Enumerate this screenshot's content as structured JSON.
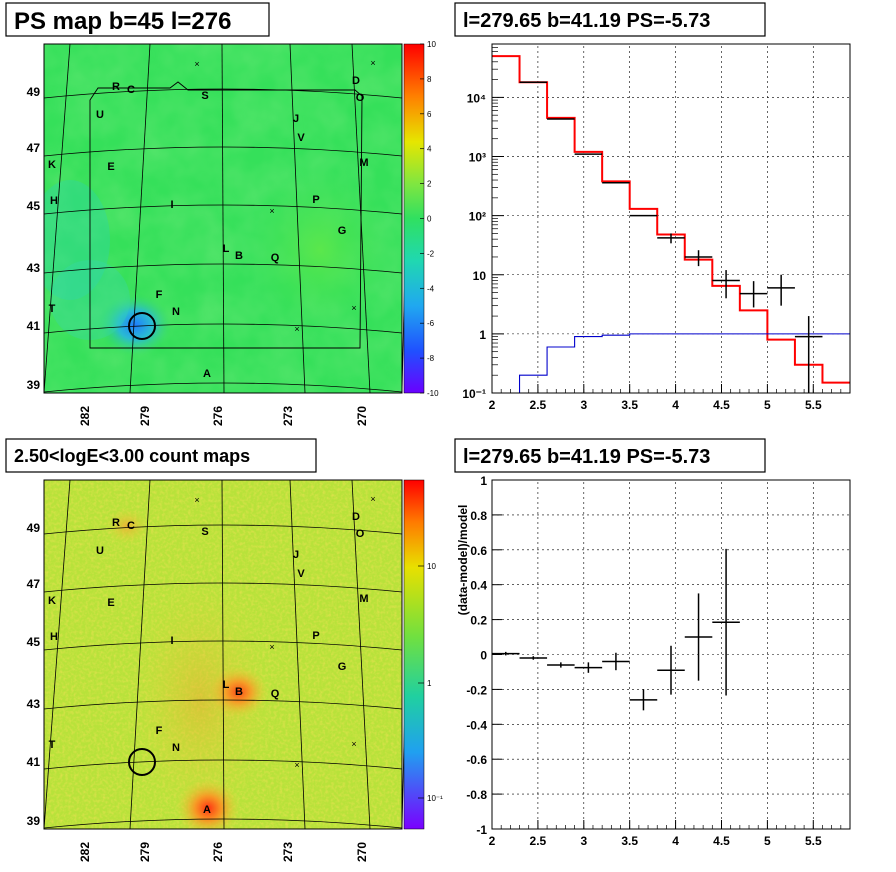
{
  "panels": {
    "top_left_title": "PS map b=45 l=276",
    "top_right_title": "l=279.65 b=41.19 PS=-5.73",
    "bottom_left_title": "2.50<logE<3.00 count maps",
    "bottom_right_title": "l=279.65 b=41.19 PS=-5.73"
  },
  "maps": {
    "lon_ticks": [
      "282",
      "279",
      "276",
      "273",
      "270"
    ],
    "lat_ticks": [
      "49",
      "47",
      "45",
      "43",
      "41",
      "39"
    ],
    "top_palette_ticks": [
      "10",
      "8",
      "6",
      "4",
      "2",
      "0",
      "-2",
      "-4",
      "-6",
      "-8",
      "-10"
    ],
    "bottom_palette_ticks": [
      "10",
      "1",
      "10⁻¹"
    ],
    "source_labels": [
      "R",
      "C",
      "D",
      "O",
      "S",
      "U",
      "J",
      "V",
      "K",
      "E",
      "M",
      "H",
      "I",
      "P",
      "G",
      "L",
      "B",
      "Q",
      "F",
      "T",
      "N",
      "A"
    ],
    "colors": {
      "ps_map_base": "#35e05a",
      "count_map_base": "#b8e23a",
      "circle": "#000000"
    }
  },
  "chart_data": [
    {
      "type": "step",
      "title": "l=279.65 b=41.19 PS=-5.73",
      "xlabel": "",
      "ylabel": "",
      "log_y": true,
      "xlim": [
        2.0,
        5.9
      ],
      "ylim": [
        0.1,
        80000
      ],
      "x_ticks": [
        "2",
        "2.5",
        "3",
        "3.5",
        "4",
        "4.5",
        "5",
        "5.5"
      ],
      "y_ticks": [
        "10⁻¹",
        "1",
        "10",
        "10²",
        "10³",
        "10⁴"
      ],
      "bin_edges": [
        2.0,
        2.3,
        2.6,
        2.9,
        3.2,
        3.5,
        3.8,
        4.1,
        4.4,
        4.7,
        5.0,
        5.3,
        5.6,
        5.9
      ],
      "series": [
        {
          "color": "#ff0000",
          "values": [
            50000,
            18000,
            4500,
            1200,
            380,
            130,
            48,
            18,
            6.5,
            2.5,
            0.8,
            0.3,
            0.15
          ]
        },
        {
          "color": "#0000cc",
          "values": [
            0.05,
            0.2,
            0.6,
            0.9,
            0.95,
            1.0,
            1.0,
            1.0,
            1.0,
            1.0,
            1.0,
            1.0,
            1.0
          ]
        },
        {
          "color": "#000000",
          "x": [
            2.45,
            2.75,
            3.05,
            3.35,
            3.65,
            3.95,
            4.25,
            4.55,
            4.85,
            5.15,
            5.45
          ],
          "values": [
            18000,
            4300,
            1100,
            360,
            100,
            42,
            20,
            8,
            4.8,
            6,
            0.9
          ],
          "err_low": [
            0,
            0,
            0,
            0,
            0,
            8,
            6,
            4,
            2,
            3,
            0.88
          ],
          "err_high": [
            0,
            0,
            0,
            0,
            0,
            8,
            6,
            4,
            3,
            4,
            1.1
          ]
        }
      ]
    },
    {
      "type": "scatter",
      "title": "l=279.65 b=41.19 PS=-5.73",
      "xlabel": "",
      "ylabel": "(data-model)/model",
      "xlim": [
        2.0,
        5.9
      ],
      "ylim": [
        -1.0,
        1.0
      ],
      "x_ticks": [
        "2",
        "2.5",
        "3",
        "3.5",
        "4",
        "4.5",
        "5",
        "5.5"
      ],
      "y_ticks": [
        "-1",
        "-0.8",
        "-0.6",
        "-0.4",
        "-0.2",
        "0",
        "0.2",
        "0.4",
        "0.6",
        "0.8",
        "1"
      ],
      "points": [
        {
          "x": 2.15,
          "y": 0.005,
          "xerr": 0.15,
          "yerr": 0.01
        },
        {
          "x": 2.45,
          "y": -0.02,
          "xerr": 0.15,
          "yerr": 0.01
        },
        {
          "x": 2.75,
          "y": -0.06,
          "xerr": 0.15,
          "yerr": 0.015
        },
        {
          "x": 3.05,
          "y": -0.075,
          "xerr": 0.15,
          "yerr": 0.03
        },
        {
          "x": 3.35,
          "y": -0.04,
          "xerr": 0.15,
          "yerr": 0.05
        },
        {
          "x": 3.65,
          "y": -0.26,
          "xerr": 0.15,
          "yerr": 0.06
        },
        {
          "x": 3.95,
          "y": -0.09,
          "xerr": 0.15,
          "yerr": 0.14
        },
        {
          "x": 4.25,
          "y": 0.1,
          "xerr": 0.15,
          "yerr": 0.25
        },
        {
          "x": 4.55,
          "y": 0.185,
          "xerr": 0.15,
          "yerr": 0.42
        }
      ]
    }
  ]
}
